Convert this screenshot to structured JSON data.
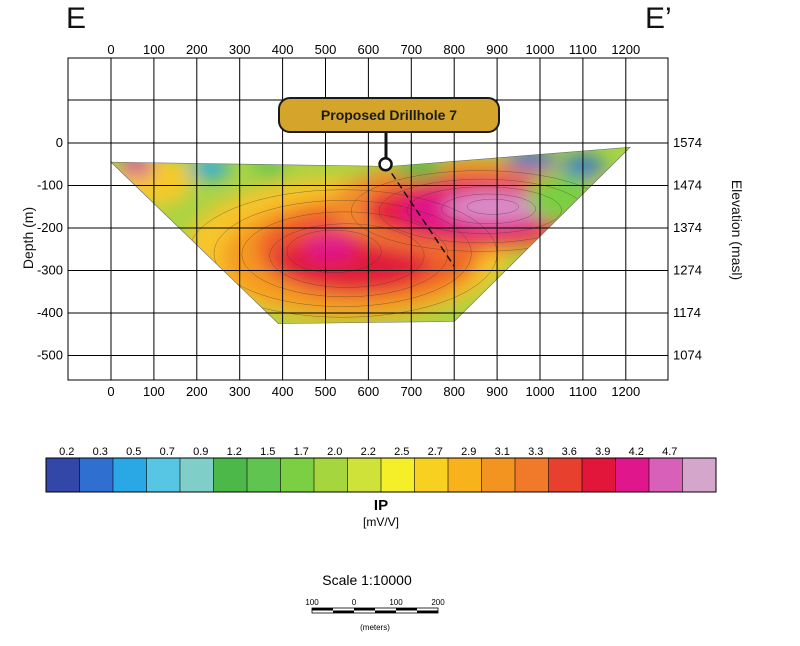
{
  "section": {
    "left_label": "E",
    "right_label": "E’",
    "callout": "Proposed Drillhole 7"
  },
  "chart_data": {
    "type": "heatmap",
    "x_ticks": [
      "0",
      "100",
      "200",
      "300",
      "400",
      "500",
      "600",
      "700",
      "800",
      "900",
      "1000",
      "1100",
      "1200"
    ],
    "x_range": [
      -100,
      1300
    ],
    "depth_ticks": [
      {
        "label": "0",
        "value": 0
      },
      {
        "label": "-100",
        "value": -100
      },
      {
        "label": "-200",
        "value": -200
      },
      {
        "label": "-300",
        "value": -300
      },
      {
        "label": "-400",
        "value": -400
      },
      {
        "label": "-500",
        "value": -500
      }
    ],
    "depth_range": [
      -600,
      200
    ],
    "elevation_ticks": [
      {
        "label": "1574",
        "depth": 0
      },
      {
        "label": "1474",
        "depth": -100
      },
      {
        "label": "1374",
        "depth": -200
      },
      {
        "label": "1274",
        "depth": -300
      },
      {
        "label": "1174",
        "depth": -400
      },
      {
        "label": "1074",
        "depth": -500
      }
    ],
    "ylabel_left": "Depth (m)",
    "ylabel_right": "Elevation (masl)",
    "grid": true,
    "section_outline": [
      [
        0,
        -45
      ],
      [
        650,
        -55
      ],
      [
        1210,
        -10
      ],
      [
        800,
        -420
      ],
      [
        390,
        -425
      ]
    ],
    "anomalies": [
      {
        "x": 510,
        "depth": -250,
        "value": 4.2
      },
      {
        "x": 850,
        "depth": -160,
        "value": 4.7
      },
      {
        "x": 580,
        "depth": -310,
        "value": 3.6
      }
    ],
    "drillhole": {
      "collar": [
        640,
        -50
      ],
      "toe": [
        800,
        -290
      ]
    },
    "colorbar": {
      "ticks": [
        "0.2",
        "0.3",
        "0.5",
        "0.7",
        "0.9",
        "1.2",
        "1.5",
        "1.7",
        "2.0",
        "2.2",
        "2.5",
        "2.7",
        "2.9",
        "3.1",
        "3.3",
        "3.6",
        "3.9",
        "4.2",
        "4.7"
      ],
      "colors": [
        "#3347a8",
        "#2f6fd0",
        "#2aa8e6",
        "#56c6e4",
        "#7fcfc8",
        "#4db84a",
        "#5fc450",
        "#7ccf42",
        "#a5d63e",
        "#cfe23a",
        "#f5ef2a",
        "#f8d020",
        "#f7b21c",
        "#f49420",
        "#f07a2a",
        "#e8402e",
        "#e2163a",
        "#e0168c",
        "#d860b8",
        "#d4a6cc"
      ],
      "label": "IP",
      "units": "[mV/V]"
    },
    "scale": {
      "text": "Scale 1:10000",
      "ticks": [
        "100",
        "0",
        "100",
        "200"
      ],
      "units": "(meters)"
    }
  }
}
